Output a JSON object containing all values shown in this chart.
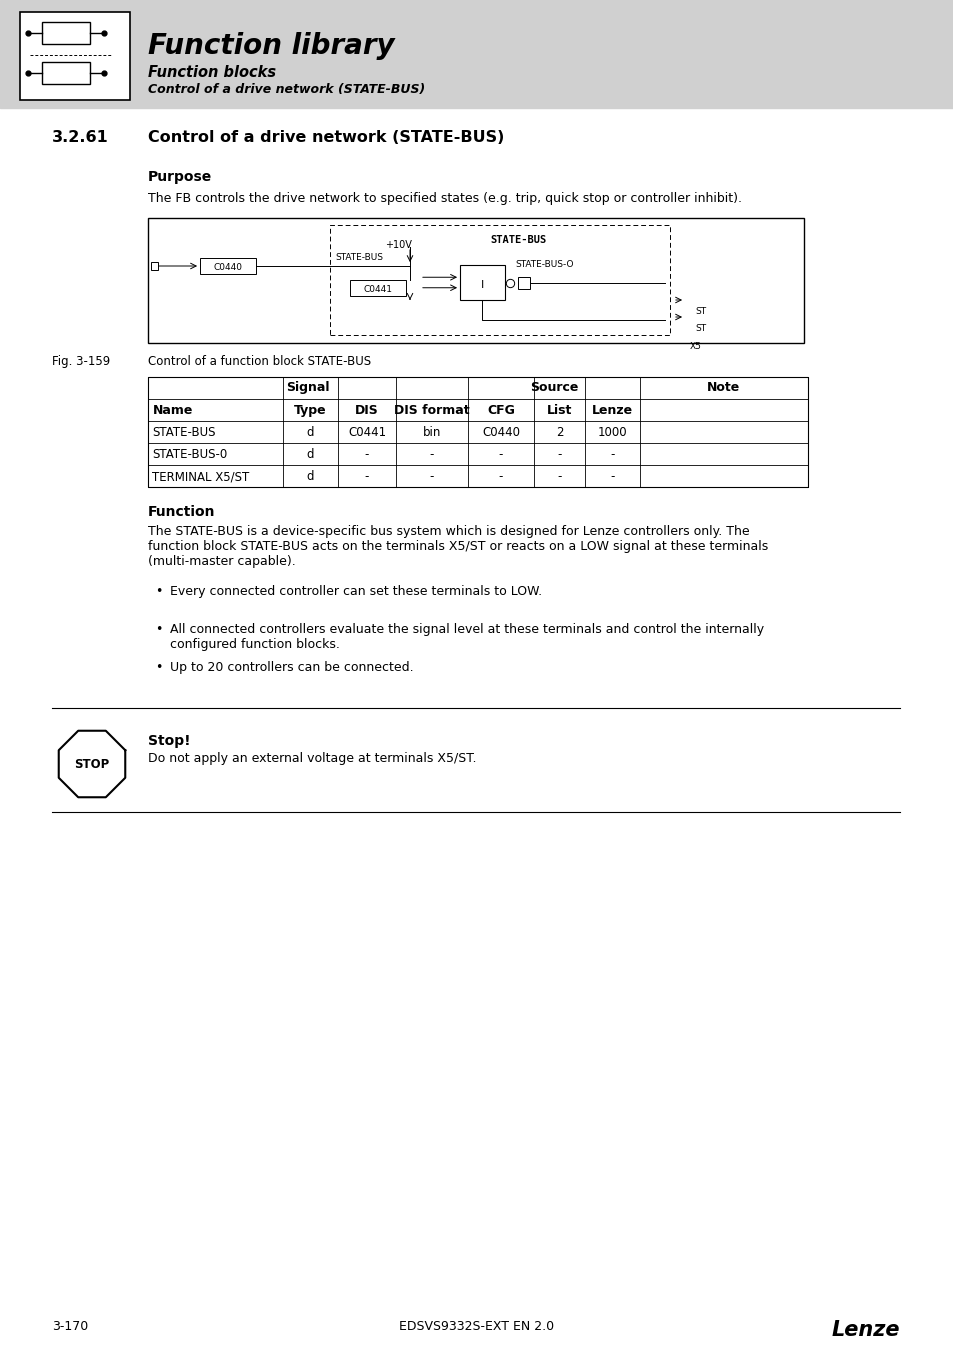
{
  "page_bg": "#ffffff",
  "header_bg": "#d0d0d0",
  "header_title": "Function library",
  "header_sub1": "Function blocks",
  "header_sub2": "Control of a drive network (STATE-BUS)",
  "section_number": "3.2.61",
  "section_title": "Control of a drive network (STATE-BUS)",
  "purpose_label": "Purpose",
  "purpose_text": "The FB controls the drive network to specified states (e.g. trip, quick stop or controller inhibit).",
  "fig_label": "Fig. 3-159",
  "fig_caption": "Control of a function block STATE-BUS",
  "table_rows": [
    [
      "STATE-BUS",
      "d",
      "C0441",
      "bin",
      "C0440",
      "2",
      "1000",
      ""
    ],
    [
      "STATE-BUS-0",
      "d",
      "-",
      "-",
      "-",
      "-",
      "-",
      ""
    ],
    [
      "TERMINAL X5/ST",
      "d",
      "-",
      "-",
      "-",
      "-",
      "-",
      ""
    ]
  ],
  "function_label": "Function",
  "function_lines": [
    "The STATE-BUS is a device-specific bus system which is designed for Lenze controllers only. The",
    "function block STATE-BUS acts on the terminals X5/ST or reacts on a LOW signal at these terminals",
    "(multi-master capable)."
  ],
  "bullet_points": [
    "Every connected controller can set these terminals to LOW.",
    [
      "All connected controllers evaluate the signal level at these terminals and control the internally",
      "configured function blocks."
    ],
    "Up to 20 controllers can be connected."
  ],
  "stop_title": "Stop!",
  "stop_text": "Do not apply an external voltage at terminals X5/ST.",
  "footer_left": "3-170",
  "footer_center": "EDSVS9332S-EXT EN 2.0",
  "footer_right": "Lenze"
}
